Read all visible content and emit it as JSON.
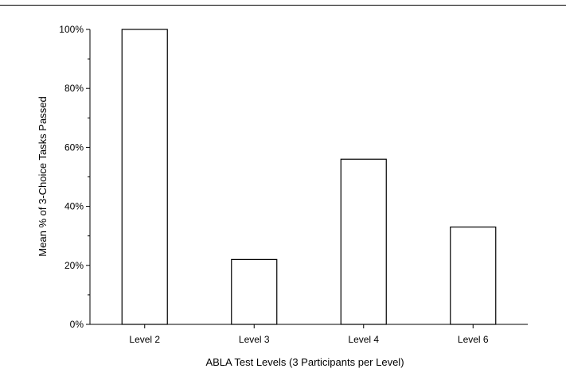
{
  "chart_data": {
    "type": "bar",
    "categories": [
      "Level 2",
      "Level 3",
      "Level 4",
      "Level 6"
    ],
    "values": [
      100,
      22,
      56,
      33
    ],
    "xlabel": "ABLA Test Levels (3 Participants per Level)",
    "ylabel": "Mean % of 3-Choice Tasks Passed",
    "ylim": [
      0,
      100
    ],
    "yticks": [
      "0%",
      "20%",
      "40%",
      "60%",
      "80%",
      "100%"
    ],
    "grid": false,
    "bar_fill": "#ffffff",
    "bar_stroke": "#000000"
  }
}
